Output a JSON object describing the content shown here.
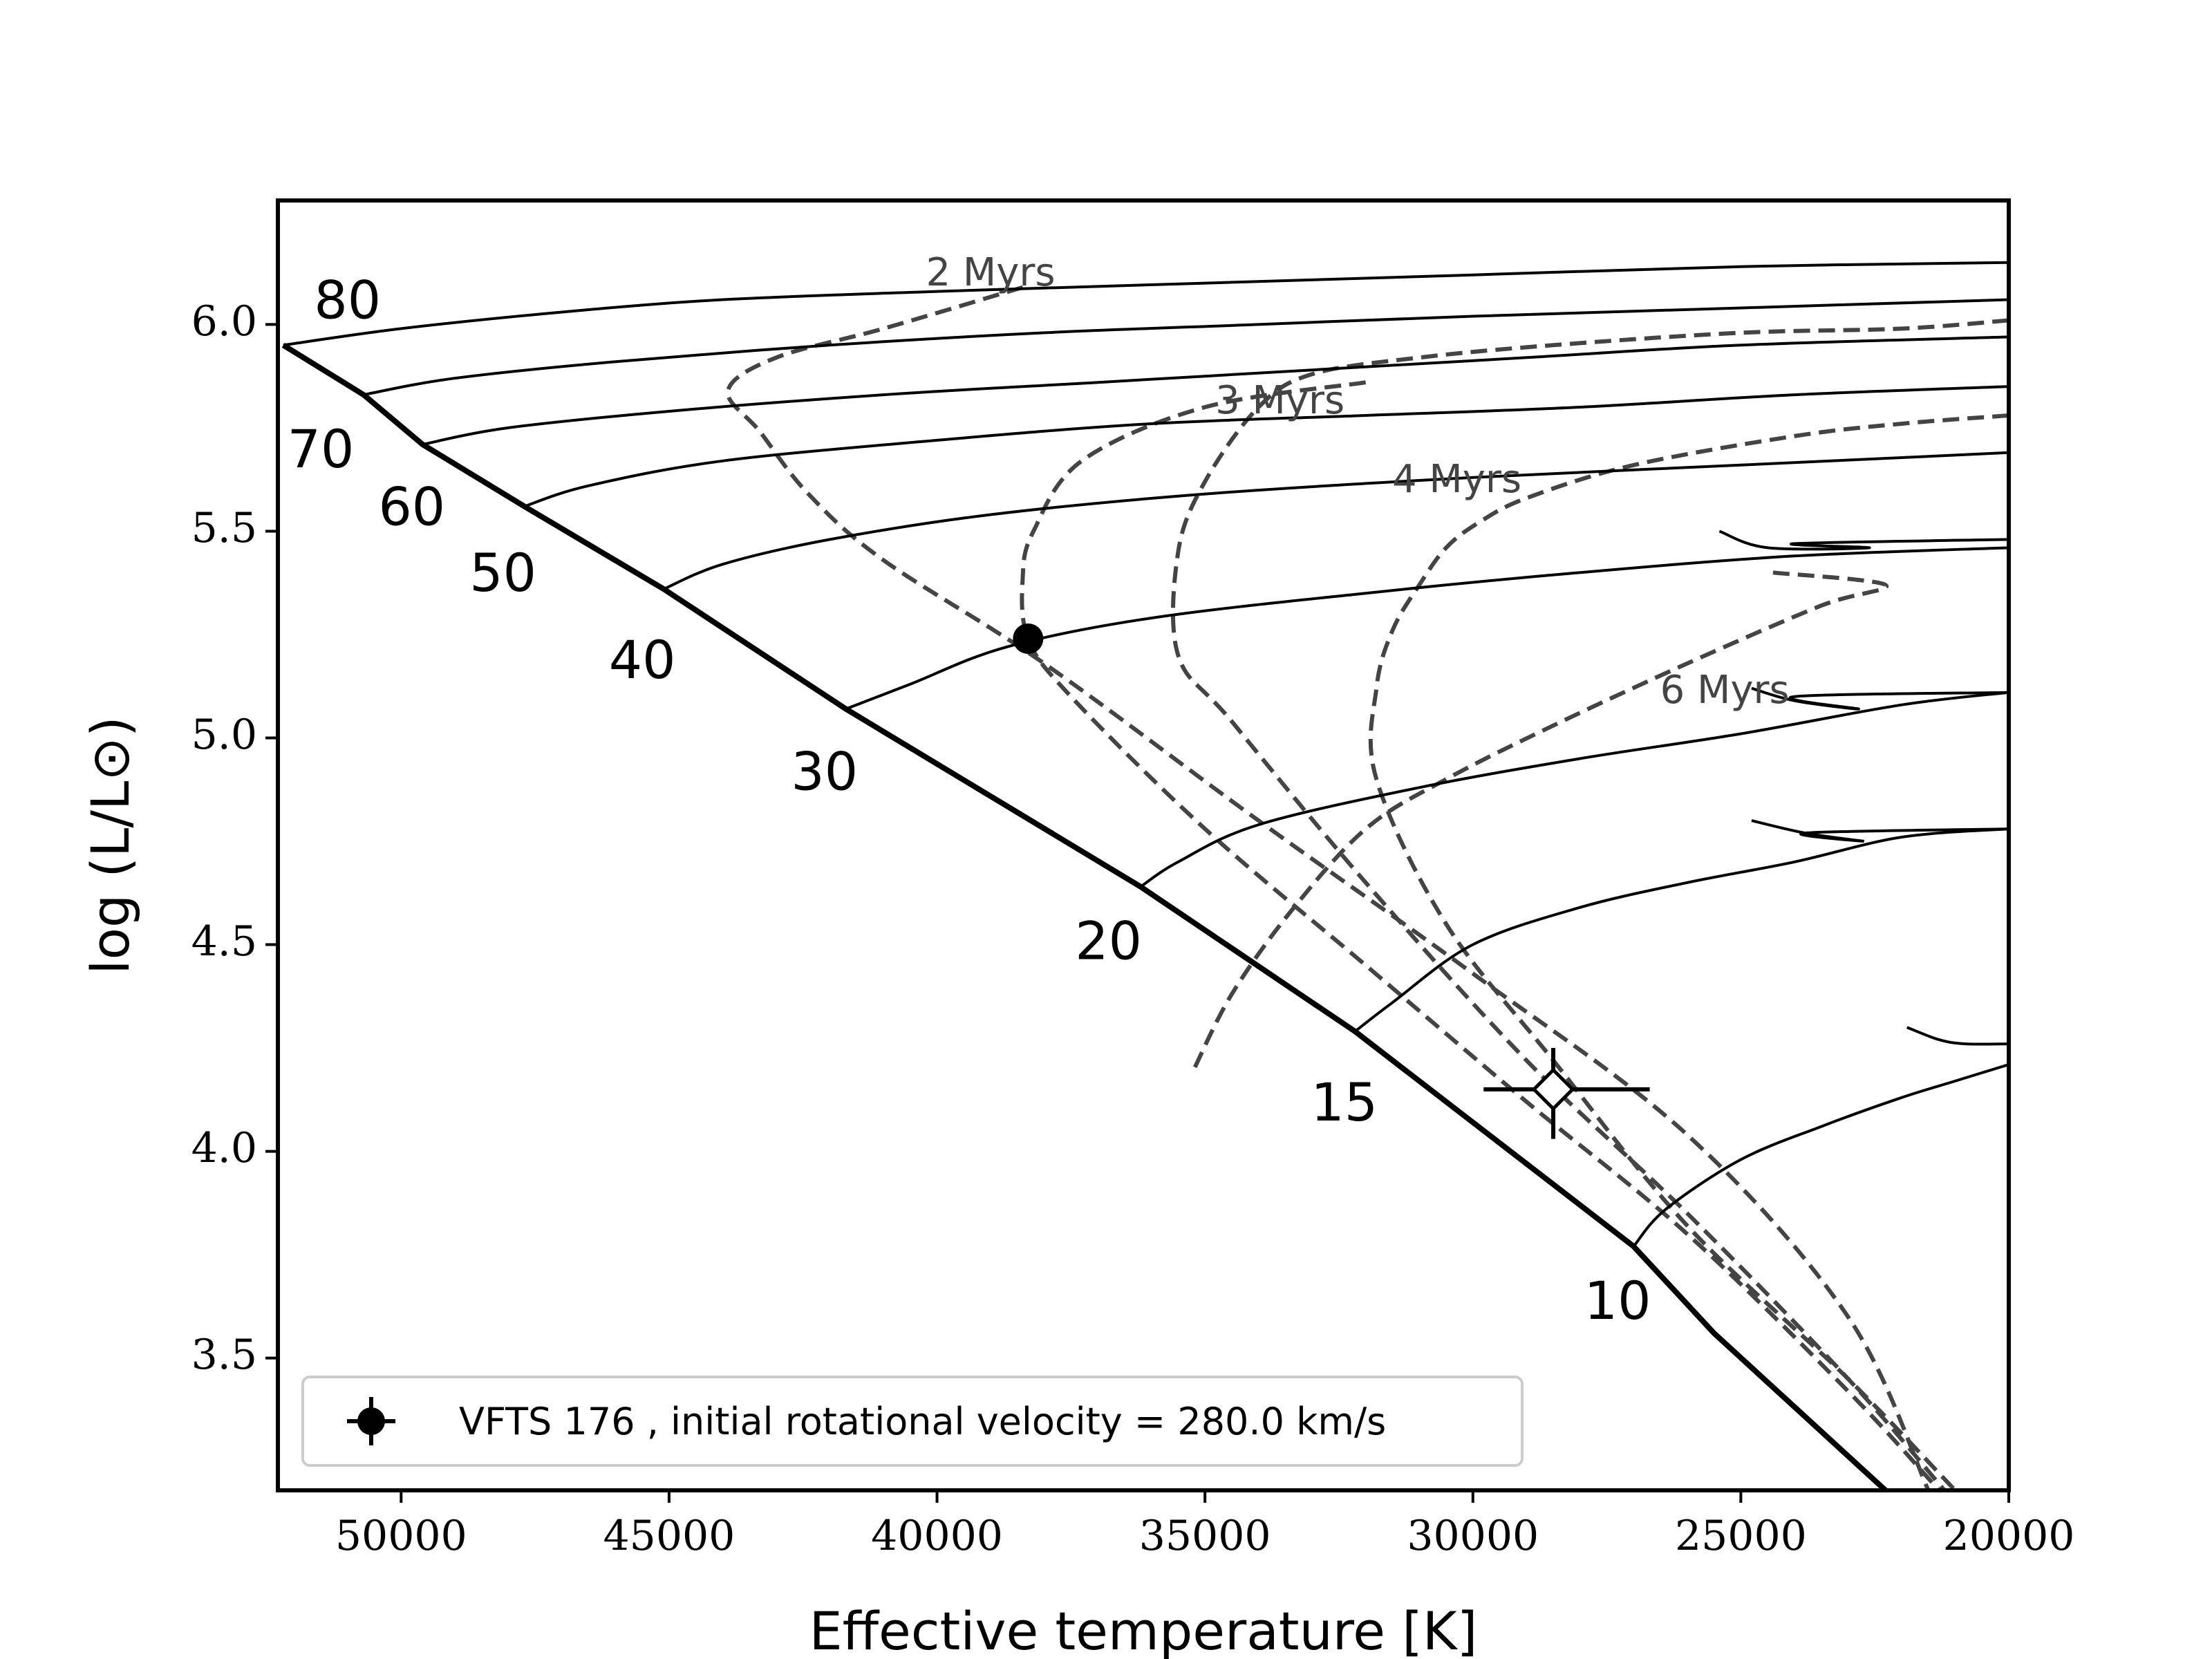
{
  "chart_data": {
    "type": "line",
    "title": "",
    "xlabel": "Effective temperature [K]",
    "ylabel": "log (L/L⊙)",
    "xlim": [
      52300,
      20000
    ],
    "ylim": [
      3.18,
      6.3
    ],
    "x_ticks": [
      50000,
      45000,
      40000,
      35000,
      30000,
      25000,
      20000
    ],
    "y_ticks": [
      3.5,
      4.0,
      4.5,
      5.0,
      5.5,
      6.0
    ],
    "y_tick_labels": [
      "3.5",
      "4.0",
      "4.5",
      "5.0",
      "5.5",
      "6.0"
    ],
    "grid": false,
    "zams": {
      "x": [
        52200,
        50700,
        49600,
        47700,
        45100,
        41700,
        36200,
        32200,
        27000,
        25500,
        22300,
        21000
      ],
      "y": [
        5.95,
        5.83,
        5.71,
        5.56,
        5.36,
        5.07,
        4.64,
        4.29,
        3.77,
        3.56,
        3.18,
        3.0
      ]
    },
    "tracks": [
      {
        "mass": "80",
        "x": [
          52200,
          50000,
          47000,
          44000,
          40000,
          35000,
          30000,
          25000,
          20000
        ],
        "y": [
          5.95,
          5.99,
          6.03,
          6.06,
          6.08,
          6.1,
          6.12,
          6.14,
          6.15
        ]
      },
      {
        "mass": "70",
        "x": [
          50700,
          49000,
          46000,
          42000,
          38000,
          34000,
          30000,
          25000,
          20000
        ],
        "y": [
          5.83,
          5.87,
          5.91,
          5.95,
          5.98,
          6.0,
          6.02,
          6.04,
          6.06
        ]
      },
      {
        "mass": "60",
        "x": [
          49600,
          48000,
          45000,
          41000,
          37000,
          33000,
          29000,
          25000,
          20000
        ],
        "y": [
          5.71,
          5.75,
          5.79,
          5.83,
          5.86,
          5.89,
          5.92,
          5.95,
          5.97
        ]
      },
      {
        "mass": "50",
        "x": [
          47700,
          46500,
          44000,
          40000,
          36000,
          32000,
          28000,
          24000,
          20000
        ],
        "y": [
          5.56,
          5.61,
          5.67,
          5.72,
          5.76,
          5.78,
          5.8,
          5.83,
          5.85
        ]
      },
      {
        "mass": "40",
        "x": [
          45100,
          44000,
          42000,
          39000,
          35000,
          30000,
          25000,
          20000
        ],
        "y": [
          5.36,
          5.42,
          5.48,
          5.54,
          5.59,
          5.63,
          5.66,
          5.69
        ]
      },
      {
        "mass": "30",
        "x": [
          41700,
          40500,
          38700,
          36000,
          32000,
          28000,
          24000,
          20000
        ],
        "y": [
          5.07,
          5.13,
          5.22,
          5.29,
          5.35,
          5.4,
          5.44,
          5.46
        ]
      },
      {
        "mass": "20",
        "x": [
          36200,
          35500,
          34000,
          31000,
          28000,
          25000,
          22000,
          20000
        ],
        "y": [
          4.64,
          4.7,
          4.79,
          4.88,
          4.95,
          5.01,
          5.08,
          5.11
        ]
      },
      {
        "mass": "15",
        "x": [
          32200,
          31500,
          30000,
          28000,
          26000,
          24000,
          22000,
          20000
        ],
        "y": [
          4.29,
          4.36,
          4.5,
          4.59,
          4.65,
          4.7,
          4.76,
          4.78
        ]
      },
      {
        "mass": "10",
        "x": [
          27000,
          26400,
          25000,
          23500,
          22000,
          21000,
          20000
        ],
        "y": [
          3.77,
          3.86,
          3.98,
          4.06,
          4.13,
          4.17,
          4.21
        ]
      }
    ],
    "track_hooks": [
      {
        "x": [
          25400,
          24500,
          22600,
          24000,
          20000
        ],
        "y": [
          5.5,
          5.46,
          5.46,
          5.47,
          5.48
        ]
      },
      {
        "x": [
          24800,
          24000,
          22800,
          24000,
          20000
        ],
        "y": [
          5.12,
          5.09,
          5.07,
          5.1,
          5.11
        ]
      },
      {
        "x": [
          24800,
          23800,
          22700,
          23800,
          20000
        ],
        "y": [
          4.8,
          4.77,
          4.75,
          4.77,
          4.78
        ]
      },
      {
        "x": [
          21900,
          21300,
          20800,
          20000
        ],
        "y": [
          4.3,
          4.27,
          4.26,
          4.26
        ]
      }
    ],
    "isochrones": [
      {
        "label": "2 Myrs",
        "x": [
          38400,
          41000,
          43000,
          43900,
          43300,
          42400,
          41000,
          38000,
          34000,
          30000,
          26000,
          23000,
          21500
        ],
        "y": [
          6.09,
          5.99,
          5.92,
          5.84,
          5.74,
          5.59,
          5.43,
          5.18,
          4.8,
          4.43,
          4.04,
          3.6,
          3.18
        ]
      },
      {
        "label": "3 Myrs",
        "x": [
          32000,
          35000,
          37300,
          38200,
          38400,
          38300,
          37500,
          35000,
          32000,
          29000,
          26000,
          23000,
          21300
        ],
        "y": [
          5.86,
          5.8,
          5.67,
          5.5,
          5.39,
          5.24,
          5.1,
          4.78,
          4.45,
          4.12,
          3.8,
          3.42,
          3.18
        ]
      },
      {
        "label": "4 Myrs",
        "x": [
          20000,
          22000,
          25000,
          28500,
          31000,
          33000,
          34000,
          35000,
          35500,
          35500,
          34500,
          32000,
          29000,
          26000,
          23000,
          21200
        ],
        "y": [
          6.01,
          5.99,
          5.98,
          5.95,
          5.92,
          5.88,
          5.8,
          5.62,
          5.45,
          5.2,
          5.04,
          4.65,
          4.22,
          3.85,
          3.45,
          3.18
        ]
      },
      {
        "label": "6 Myrs",
        "x": [
          20000,
          22000,
          24000,
          27000,
          29000,
          29900,
          30500,
          31000,
          31500,
          31800,
          31800,
          30500,
          28500,
          26000,
          23000,
          21000
        ],
        "y": [
          5.78,
          5.76,
          5.73,
          5.66,
          5.58,
          5.52,
          5.46,
          5.37,
          5.26,
          5.12,
          4.9,
          4.55,
          4.22,
          3.82,
          3.45,
          3.18
        ]
      }
    ],
    "isochrone_tail": {
      "x": [
        24400,
        22300,
        23500,
        26000,
        28500,
        30500,
        32000,
        33400,
        34500,
        35200
      ],
      "y": [
        5.4,
        5.37,
        5.32,
        5.18,
        5.03,
        4.9,
        4.78,
        4.58,
        4.38,
        4.2
      ]
    },
    "model_point": {
      "x": 38300,
      "y": 5.24
    },
    "observation": {
      "name": "VFTS 176",
      "x": 28500,
      "y": 4.15,
      "xerr_low": 1300,
      "xerr_high": 1800,
      "yerr_low": 0.12,
      "yerr_high": 0.1
    },
    "mass_labels": [
      {
        "text": "80",
        "x": 51000,
        "y": 6.05
      },
      {
        "text": "70",
        "x": 51500,
        "y": 5.69
      },
      {
        "text": "60",
        "x": 49800,
        "y": 5.55
      },
      {
        "text": "50",
        "x": 48100,
        "y": 5.39
      },
      {
        "text": "40",
        "x": 45500,
        "y": 5.18
      },
      {
        "text": "30",
        "x": 42100,
        "y": 4.91
      },
      {
        "text": "20",
        "x": 36800,
        "y": 4.5
      },
      {
        "text": "15",
        "x": 32400,
        "y": 4.11
      },
      {
        "text": "10",
        "x": 27300,
        "y": 3.63
      }
    ],
    "isochrone_labels": [
      {
        "text": "2 Myrs",
        "x": 39000,
        "y": 6.12
      },
      {
        "text": "3 Myrs",
        "x": 33600,
        "y": 5.81
      },
      {
        "text": "4 Myrs",
        "x": 30300,
        "y": 5.62
      },
      {
        "text": "6 Myrs",
        "x": 25300,
        "y": 5.11
      }
    ],
    "legend": {
      "placement": "lower-left",
      "entries": [
        {
          "label": "VFTS 176 , initial rotational velocity = 280.0 km/s",
          "marker": "filled-circle-errorbar"
        }
      ]
    }
  }
}
